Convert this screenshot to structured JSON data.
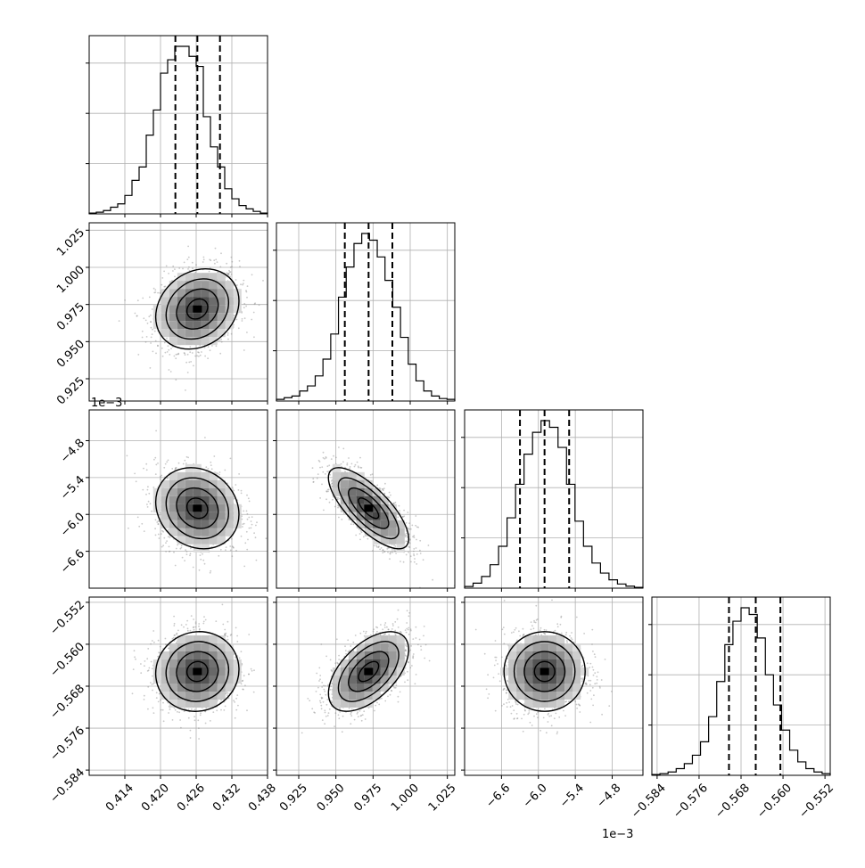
{
  "chart_data": {
    "type": "corner",
    "parameters": [
      {
        "ticks": [
          "0.414",
          "0.420",
          "0.426",
          "0.432",
          "0.438"
        ],
        "range": [
          0.408,
          0.438
        ],
        "quantiles": [
          0.4225,
          0.4262,
          0.43
        ],
        "scale_label": "",
        "histogram": [
          0.005,
          0.01,
          0.02,
          0.04,
          0.06,
          0.11,
          0.2,
          0.28,
          0.47,
          0.62,
          0.84,
          0.92,
          1.0,
          1.0,
          0.94,
          0.88,
          0.58,
          0.4,
          0.28,
          0.15,
          0.09,
          0.05,
          0.03,
          0.015,
          0.005
        ]
      },
      {
        "ticks": [
          "0.925",
          "0.950",
          "0.975",
          "1.000",
          "1.025"
        ],
        "range": [
          0.91,
          1.03
        ],
        "quantiles": [
          0.956,
          0.972,
          0.988
        ],
        "scale_label": "",
        "histogram": [
          0.01,
          0.02,
          0.03,
          0.06,
          0.09,
          0.15,
          0.25,
          0.4,
          0.62,
          0.8,
          0.94,
          1.0,
          0.96,
          0.86,
          0.72,
          0.56,
          0.38,
          0.22,
          0.12,
          0.06,
          0.03,
          0.015,
          0.01
        ]
      },
      {
        "ticks": [
          "−6.6",
          "−6.0",
          "−5.4",
          "−4.8"
        ],
        "range": [
          -7.2,
          -4.3
        ],
        "quantiles": [
          -6.3,
          -5.9,
          -5.5
        ],
        "scale_label": "1e−3",
        "histogram": [
          0.01,
          0.03,
          0.07,
          0.14,
          0.25,
          0.42,
          0.62,
          0.8,
          0.93,
          1.0,
          0.96,
          0.84,
          0.62,
          0.4,
          0.25,
          0.15,
          0.09,
          0.05,
          0.025,
          0.012,
          0.005
        ]
      },
      {
        "ticks": [
          "−0.584",
          "−0.576",
          "−0.568",
          "−0.560",
          "−0.552"
        ],
        "range": [
          -0.585,
          -0.551
        ],
        "quantiles": [
          -0.5703,
          -0.5652,
          -0.5605
        ],
        "scale_label": "",
        "histogram": [
          0.005,
          0.01,
          0.02,
          0.04,
          0.07,
          0.12,
          0.2,
          0.35,
          0.56,
          0.78,
          0.92,
          1.0,
          0.96,
          0.82,
          0.6,
          0.42,
          0.27,
          0.15,
          0.08,
          0.04,
          0.02,
          0.01
        ]
      }
    ],
    "scale_labels": {
      "row2_y": "1e−3",
      "col2_x": "1e−3"
    },
    "pairs": [
      {
        "row": 1,
        "col": 0,
        "center": [
          0.4262,
          0.972
        ],
        "sigma": [
          0.0035,
          0.0135
        ],
        "rho": 0.2
      },
      {
        "row": 2,
        "col": 0,
        "center": [
          0.4262,
          -5.9
        ],
        "sigma": [
          0.0035,
          0.33
        ],
        "rho": -0.15
      },
      {
        "row": 2,
        "col": 1,
        "center": [
          0.972,
          -5.9
        ],
        "sigma": [
          0.0135,
          0.33
        ],
        "rho": -0.75
      },
      {
        "row": 3,
        "col": 0,
        "center": [
          0.4262,
          -0.5652
        ],
        "sigma": [
          0.0035,
          0.0038
        ],
        "rho": 0.05
      },
      {
        "row": 3,
        "col": 1,
        "center": [
          0.972,
          -0.5652
        ],
        "sigma": [
          0.0135,
          0.0038
        ],
        "rho": 0.55
      },
      {
        "row": 3,
        "col": 2,
        "center": [
          -5.9,
          -0.5652
        ],
        "sigma": [
          0.33,
          0.0038
        ],
        "rho": 0.0
      }
    ],
    "contour_levels_sigma": [
      0.5,
      1.0,
      1.5,
      2.0
    ],
    "grid": true,
    "colors": {
      "line": "#000000",
      "points": "#888888",
      "grid": "#b0b0b0"
    }
  }
}
